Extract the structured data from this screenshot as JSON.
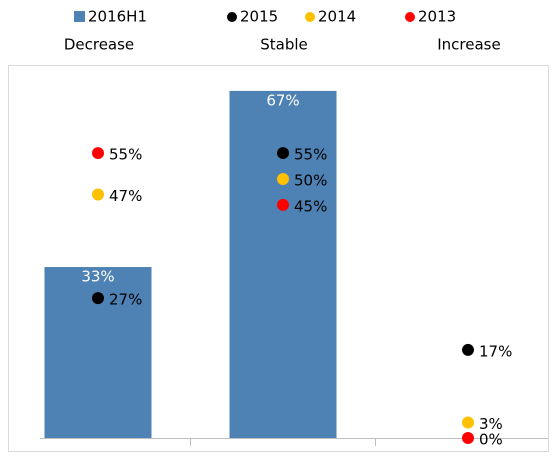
{
  "chart_data": {
    "type": "bar-dot",
    "categories": [
      "Decrease",
      "Stable",
      "Increase"
    ],
    "series": [
      {
        "name": "2016H1",
        "color": "#4e81b4",
        "kind": "bar",
        "values": [
          33,
          67,
          null
        ],
        "value_labels": [
          "33%",
          "67%",
          null
        ]
      },
      {
        "name": "2015",
        "color": "#000000",
        "kind": "dot",
        "values": [
          27,
          55,
          17
        ],
        "value_labels": [
          "27%",
          "55%",
          "17%"
        ]
      },
      {
        "name": "2014",
        "color": "#ffc000",
        "kind": "dot",
        "values": [
          47,
          50,
          3
        ],
        "value_labels": [
          "47%",
          "50%",
          "3%"
        ]
      },
      {
        "name": "2013",
        "color": "#ff0000",
        "kind": "dot",
        "values": [
          55,
          45,
          0
        ],
        "value_labels": [
          "55%",
          "45%",
          "0%"
        ]
      }
    ],
    "ylim": [
      0,
      72
    ]
  }
}
